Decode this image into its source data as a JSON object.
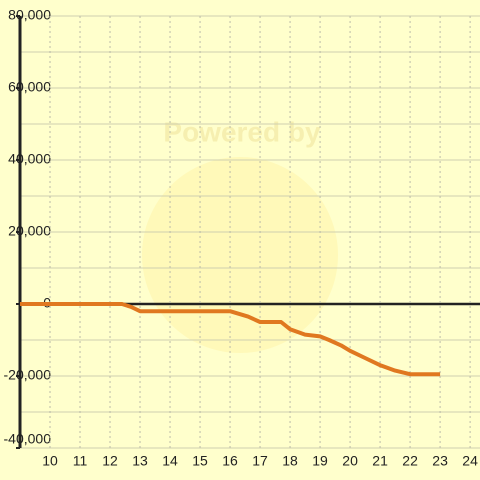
{
  "chart_data": {
    "type": "line",
    "watermark": "Powered by",
    "x": [
      9,
      12,
      12.4,
      12.7,
      13,
      14,
      15,
      16,
      16.6,
      17,
      17.7,
      18,
      18.5,
      19,
      19.3,
      19.7,
      20,
      20.5,
      21,
      21.5,
      22,
      23
    ],
    "series": [
      {
        "color": "#e07820",
        "values": [
          0,
          0,
          0,
          -800,
          -2000,
          -2000,
          -2000,
          -2000,
          -3500,
          -5000,
          -5000,
          -7000,
          -8500,
          -9000,
          -10000,
          -11500,
          -13000,
          -15000,
          -17000,
          -18500,
          -19500,
          -19500
        ]
      }
    ],
    "xlim": [
      9,
      24.33
    ],
    "xticks": [
      10,
      11,
      12,
      13,
      14,
      15,
      16,
      17,
      18,
      19,
      20,
      21,
      22,
      23,
      24
    ],
    "ylim": [
      -40000,
      80000
    ],
    "yticks": [
      {
        "value": -40000,
        "label": "-40,000"
      },
      {
        "value": -20000,
        "label": "-20,000"
      },
      0,
      {
        "value": 20000,
        "label": "20,000"
      },
      {
        "value": 40000,
        "label": "40,000"
      },
      {
        "value": 60000,
        "label": "60,000"
      },
      {
        "value": 80000,
        "label": "80,000"
      }
    ],
    "y_minor_grid": [
      -30000,
      -10000,
      10000,
      30000,
      50000,
      70000
    ],
    "grid": true
  }
}
